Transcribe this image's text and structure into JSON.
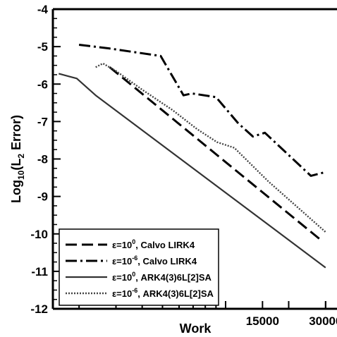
{
  "chart_data": {
    "type": "line",
    "xlabel": "Work",
    "ylabel": "Log10(L2 Error)",
    "ylabel_parts": {
      "pre": "Log",
      "sub1": "10",
      "mid": "(L",
      "sub2": "2",
      "post": " Error)"
    },
    "ylim": [
      -12,
      -4
    ],
    "xlim": [
      1500,
      34000
    ],
    "x_scale": "log",
    "grid": false,
    "legend_position": "bottom-left",
    "y_ticks": [
      -4,
      -5,
      -6,
      -7,
      -8,
      -9,
      -10,
      -11,
      -12
    ],
    "x_tick_labels": [
      {
        "value": 15000,
        "label": "15000"
      },
      {
        "value": 30000,
        "label": "30000"
      }
    ],
    "series": [
      {
        "name": "ε=10⁰, Calvo LIRK4",
        "legend": {
          "pre": "ε=10",
          "sup": "0",
          "post": ", Calvo LIRK4"
        },
        "style": "dash",
        "x": [
          2800,
          29000
        ],
        "y": [
          -5.55,
          -10.2
        ]
      },
      {
        "name": "ε=10⁻⁶, Calvo LIRK4",
        "legend": {
          "pre": "ε=10",
          "sup": "-6",
          "post": ", Calvo LIRK4"
        },
        "style": "dashdot",
        "x": [
          2000,
          2800,
          4900,
          6300,
          6900,
          9000,
          11500,
          13500,
          15400,
          25500,
          30000
        ],
        "y": [
          -4.95,
          -5.05,
          -5.25,
          -6.3,
          -6.25,
          -6.35,
          -7.05,
          -7.4,
          -7.3,
          -8.45,
          -8.35
        ]
      },
      {
        "name": "ε=10⁰, ARK4(3)6L[2]SA",
        "legend": {
          "pre": "ε=10",
          "sup": "0",
          "post": ", ARK4(3)6L[2]SA"
        },
        "style": "solid",
        "x": [
          1600,
          1800,
          1950,
          2400,
          30000
        ],
        "y": [
          -5.72,
          -5.8,
          -5.85,
          -6.3,
          -10.9
        ]
      },
      {
        "name": "ε=10⁻⁶, ARK4(3)6L[2]SA",
        "legend": {
          "pre": "ε=10",
          "sup": "-6",
          "post": ", ARK4(3)6L[2]SA"
        },
        "style": "dotted",
        "x": [
          2400,
          2600,
          3000,
          4000,
          5600,
          7300,
          9100,
          11000,
          16000,
          30000
        ],
        "y": [
          -5.55,
          -5.45,
          -5.65,
          -6.15,
          -6.7,
          -7.2,
          -7.55,
          -7.7,
          -8.6,
          -9.95
        ]
      }
    ]
  }
}
